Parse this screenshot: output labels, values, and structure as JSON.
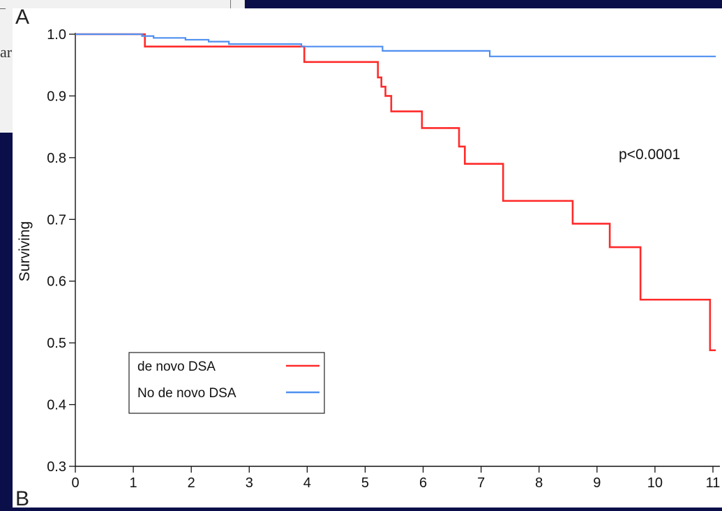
{
  "page": {
    "panel_label_top": "A",
    "panel_label_bottom": "B",
    "paper_fragment": "ar"
  },
  "chart_data": {
    "type": "line",
    "title": "",
    "xlabel": "",
    "ylabel": "Surviving",
    "xlim": [
      0,
      11
    ],
    "ylim": [
      0.3,
      1.0
    ],
    "x_ticks": [
      0,
      1,
      2,
      3,
      4,
      5,
      6,
      7,
      8,
      9,
      10,
      11
    ],
    "y_ticks": [
      0.3,
      0.4,
      0.5,
      0.6,
      0.7,
      0.8,
      0.9,
      1.0
    ],
    "x_tick_labels": [
      "0",
      "1",
      "2",
      "3",
      "4",
      "5",
      "6",
      "7",
      "8",
      "9",
      "10",
      "11"
    ],
    "y_tick_labels": [
      "0.3",
      "0.4",
      "0.5",
      "0.6",
      "0.7",
      "0.8",
      "0.9",
      "1.0"
    ],
    "grid": false,
    "step": true,
    "annotation": "p<0.0001",
    "legend": {
      "placement": "lower-left",
      "entries": [
        "de novo DSA",
        "No de novo DSA"
      ]
    },
    "series": [
      {
        "name": "de novo DSA",
        "color": "#ff2a2a",
        "x": [
          0,
          1.2,
          3.95,
          5.22,
          5.28,
          5.35,
          5.45,
          5.98,
          6.62,
          6.72,
          7.38,
          8.58,
          9.22,
          9.75,
          10.95,
          11.05
        ],
        "y": [
          1.0,
          0.98,
          0.955,
          0.93,
          0.915,
          0.9,
          0.875,
          0.848,
          0.818,
          0.79,
          0.73,
          0.693,
          0.655,
          0.57,
          0.488,
          0.488
        ]
      },
      {
        "name": "No de novo DSA",
        "color": "#4f8ff0",
        "x": [
          0,
          1.15,
          1.35,
          1.9,
          2.3,
          2.65,
          3.9,
          5.3,
          7.15,
          11.05
        ],
        "y": [
          1.0,
          0.997,
          0.994,
          0.991,
          0.988,
          0.984,
          0.98,
          0.973,
          0.964,
          0.964
        ]
      }
    ]
  }
}
